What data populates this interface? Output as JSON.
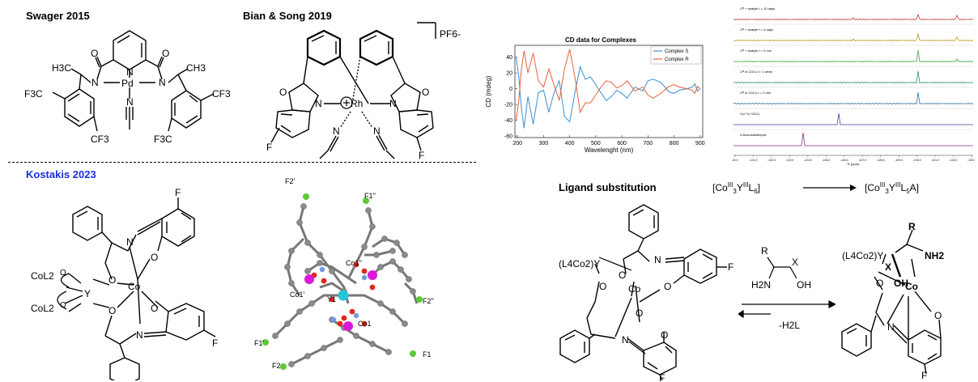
{
  "headers": {
    "swager": "Swager 2015",
    "bian": "Bian & Song 2019",
    "kostakis": "Kostakis 2023",
    "ligand_sub": "Ligand substitution"
  },
  "colors": {
    "kostakis": "#1a2fe0",
    "cobalt": "#d91ad9",
    "yttrium": "#22c5d6",
    "fluorine": "#5cc935",
    "oxygen": "#e0281e",
    "nitrogen": "#6f9be0",
    "carbon": "#8a8a8a"
  },
  "swager_labels": {
    "h3c": "H3C",
    "ch3": "CH3",
    "pd": "Pd",
    "n_left": "N",
    "n_right": "N",
    "n_pyr": "N",
    "n_nitrile": "N",
    "o_left": "O",
    "o_right": "O",
    "f3c_left": "F3C",
    "cf3_bottom_left": "CF3",
    "f3c_bottom_right": "F3C",
    "cf3_right": "CF3"
  },
  "bian_labels": {
    "pf6": "PF6-",
    "rh": "Rh",
    "n_left": "N",
    "n_right": "N",
    "o_left": "O",
    "o_right": "O",
    "nc_left": "N",
    "nc_right": "N",
    "f_left": "F",
    "f_right": "F"
  },
  "kostakis_labels": {
    "col2_top": "CoL2",
    "col2_bottom": "CoL2",
    "y": "Y",
    "co": "Co",
    "n_top": "N",
    "n_bottom": "N",
    "f_top": "F",
    "f_right": "F",
    "o_labels": [
      "O",
      "O",
      "O",
      "O",
      "O",
      "O"
    ]
  },
  "crystal_labels": {
    "f2p": "F2'",
    "f1pp": "F1''",
    "co1pp": "Co1''",
    "co1p": "Co1'",
    "y1": "Y1",
    "f2pp": "F2''",
    "f1p": "F1'",
    "co1": "Co1",
    "f2": "F2",
    "f1": "F1"
  },
  "chart_data": {
    "type": "line",
    "title": "CD data for Complexes",
    "xlabel": "Wavelenght (nm)",
    "ylabel": "CD (mdeg)",
    "xlim": [
      190,
      910
    ],
    "ylim": [
      -62,
      55
    ],
    "xticks": [
      200,
      300,
      400,
      500,
      600,
      700,
      800,
      900
    ],
    "yticks": [
      -60,
      -40,
      -20,
      0,
      20,
      40
    ],
    "legend_position": "top-right",
    "series": [
      {
        "name": "Complex S",
        "color": "#3a8fd1",
        "x": [
          195,
          205,
          215,
          225,
          240,
          260,
          280,
          300,
          320,
          340,
          360,
          380,
          400,
          420,
          440,
          460,
          480,
          500,
          520,
          540,
          560,
          580,
          600,
          620,
          650,
          680,
          700,
          720,
          750,
          780,
          800,
          820,
          850,
          870,
          880,
          890,
          900
        ],
        "y": [
          40,
          15,
          -25,
          -50,
          -10,
          -45,
          -5,
          -2,
          -30,
          -5,
          10,
          -35,
          -42,
          -5,
          28,
          12,
          15,
          5,
          -5,
          -15,
          -10,
          -2,
          -6,
          -12,
          2,
          -3,
          10,
          12,
          8,
          -4,
          -6,
          -2,
          0,
          2,
          6,
          -3,
          0
        ]
      },
      {
        "name": "Complex R",
        "color": "#e8603a",
        "x": [
          195,
          205,
          215,
          225,
          240,
          260,
          280,
          300,
          320,
          340,
          360,
          380,
          400,
          420,
          440,
          460,
          480,
          500,
          520,
          540,
          560,
          580,
          600,
          620,
          650,
          680,
          700,
          720,
          750,
          780,
          800,
          820,
          850,
          870,
          880,
          890,
          900
        ],
        "y": [
          -40,
          -15,
          25,
          48,
          20,
          45,
          10,
          2,
          25,
          5,
          -15,
          25,
          50,
          15,
          -30,
          -18,
          -18,
          -8,
          2,
          10,
          8,
          1,
          4,
          10,
          -3,
          2,
          -8,
          -12,
          -6,
          3,
          5,
          2,
          0,
          -2,
          -6,
          3,
          0
        ]
      }
    ]
  },
  "nmr": {
    "traces": [
      {
        "label": "Cᴹ + analyte t = 10 days",
        "color": "#c0392b"
      },
      {
        "label": "Cᴹ + analyte t = 4 days",
        "color": "#b59a1e"
      },
      {
        "label": "Cᴹ + analyte t = 0 min",
        "color": "#3fa33f"
      },
      {
        "label": "Cᴹ in CDCl₃ t= 1 week",
        "color": "#2b8a73"
      },
      {
        "label": "Cᴹ in CDCl₃ t = 0 min",
        "color": "#2e6fa3"
      },
      {
        "label": "H₂L³ in CDCl₃",
        "color": "#3b3ba0"
      },
      {
        "label": "4-fluorosalidehyde",
        "color": "#8e2a8e"
      }
    ],
    "axis_ticks": [
      "20.0",
      "-121.0",
      "-122.0",
      "-123.0",
      "-124.0",
      "-125.0",
      "-126.0",
      "-127.0",
      "-128.0",
      "-129.0",
      "-130.0",
      "-131.0",
      "-132.0",
      "-133.0"
    ],
    "axis_label": "f1 (ppm)"
  },
  "reaction": {
    "eq_left": "[CoIII3YIIIL6]",
    "eq_right": "[CoIII3YIIIL5A]",
    "l4co2y_left": "(L4Co2)Y",
    "l4co2y_right": "(L4Co2)Y",
    "reagent_r": "R",
    "reagent_x": "X",
    "reagent_h2n": "H2N",
    "reagent_oh": "OH",
    "minus_h2l": "-H2L",
    "co": "Co",
    "product_r": "R",
    "product_x": "X",
    "product_oh": "OH",
    "product_nh2": "NH2",
    "f": "F"
  }
}
